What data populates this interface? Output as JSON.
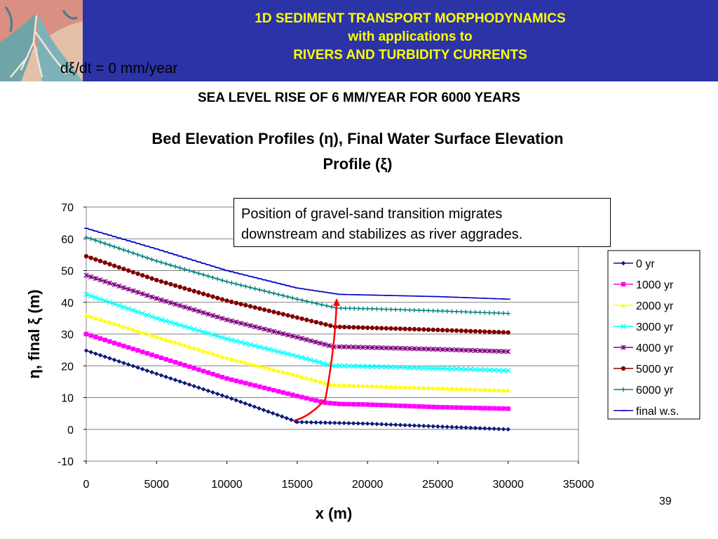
{
  "header": {
    "title_line1": "1D SEDIMENT TRANSPORT MORPHODYNAMICS",
    "title_line2": "with applications to",
    "title_line3": "RIVERS AND TURBIDITY CURRENTS",
    "rate_annotation": "dξ/dt = 0 mm/year",
    "banner_color": "#2b33a6",
    "title_color": "#ffff00"
  },
  "slide": {
    "subtitle": "SEA LEVEL RISE OF 6 MM/YEAR FOR 6000 YEARS",
    "page_number": "39"
  },
  "chart_data": {
    "type": "line",
    "title_line1": "Bed Elevation Profiles (η), Final Water Surface Elevation",
    "title_line2": "Profile (ξ)",
    "xlabel": "x (m)",
    "ylabel": "η, final ξ (m)",
    "xlim": [
      0,
      35000
    ],
    "ylim": [
      -10,
      70
    ],
    "x_ticks": [
      0,
      5000,
      10000,
      15000,
      20000,
      25000,
      30000,
      35000
    ],
    "y_ticks": [
      -10,
      0,
      10,
      20,
      30,
      40,
      50,
      60,
      70
    ],
    "grid": "horizontal",
    "legend_position": "right",
    "series": [
      {
        "name": "0 yr",
        "color": "#0a1a7a",
        "marker": "diamond",
        "points": [
          [
            0,
            24.8
          ],
          [
            5000,
            17.5
          ],
          [
            10000,
            10.2
          ],
          [
            14900,
            2.5
          ],
          [
            15000,
            2.3
          ],
          [
            18000,
            2.0
          ],
          [
            20000,
            1.8
          ],
          [
            25000,
            0.9
          ],
          [
            30000,
            0.0
          ]
        ]
      },
      {
        "name": "1000 yr",
        "color": "#ff00ff",
        "marker": "square",
        "points": [
          [
            0,
            30.0
          ],
          [
            5000,
            23.0
          ],
          [
            10000,
            16.0
          ],
          [
            15000,
            10.5
          ],
          [
            17000,
            8.4
          ],
          [
            18000,
            8.0
          ],
          [
            20000,
            7.8
          ],
          [
            25000,
            7.0
          ],
          [
            30000,
            6.5
          ]
        ]
      },
      {
        "name": "2000 yr",
        "color": "#ffff00",
        "marker": "triangle",
        "points": [
          [
            0,
            36.0
          ],
          [
            5000,
            29.2
          ],
          [
            10000,
            22.5
          ],
          [
            15000,
            17.0
          ],
          [
            17300,
            14.2
          ],
          [
            18000,
            14.0
          ],
          [
            20000,
            13.7
          ],
          [
            25000,
            13.0
          ],
          [
            30000,
            12.3
          ]
        ]
      },
      {
        "name": "3000 yr",
        "color": "#00ffff",
        "marker": "x",
        "points": [
          [
            0,
            42.5
          ],
          [
            5000,
            35.0
          ],
          [
            10000,
            28.5
          ],
          [
            15000,
            23.0
          ],
          [
            17500,
            20.0
          ],
          [
            18000,
            20.0
          ],
          [
            20000,
            19.8
          ],
          [
            25000,
            19.2
          ],
          [
            30000,
            18.5
          ]
        ]
      },
      {
        "name": "4000 yr",
        "color": "#800080",
        "marker": "asterisk",
        "points": [
          [
            0,
            48.5
          ],
          [
            5000,
            41.2
          ],
          [
            10000,
            34.5
          ],
          [
            15000,
            29.0
          ],
          [
            17600,
            26.0
          ],
          [
            18000,
            26.0
          ],
          [
            20000,
            25.8
          ],
          [
            25000,
            25.2
          ],
          [
            30000,
            24.5
          ]
        ]
      },
      {
        "name": "5000 yr",
        "color": "#800000",
        "marker": "circle",
        "points": [
          [
            0,
            54.5
          ],
          [
            5000,
            47.0
          ],
          [
            10000,
            40.5
          ],
          [
            15000,
            35.2
          ],
          [
            17700,
            32.3
          ],
          [
            20000,
            32.0
          ],
          [
            25000,
            31.3
          ],
          [
            30000,
            30.5
          ]
        ]
      },
      {
        "name": "6000 yr",
        "color": "#008080",
        "marker": "plus",
        "points": [
          [
            0,
            60.5
          ],
          [
            5000,
            53.0
          ],
          [
            10000,
            46.5
          ],
          [
            15000,
            41.0
          ],
          [
            17800,
            38.2
          ],
          [
            20000,
            38.0
          ],
          [
            25000,
            37.3
          ],
          [
            30000,
            36.5
          ]
        ]
      },
      {
        "name": "final w.s.",
        "color": "#0000cc",
        "marker": "dash",
        "points": [
          [
            0,
            63.3
          ],
          [
            5000,
            56.8
          ],
          [
            10000,
            50.0
          ],
          [
            15000,
            44.5
          ],
          [
            18000,
            42.5
          ],
          [
            20000,
            42.3
          ],
          [
            25000,
            41.8
          ],
          [
            30000,
            41.0
          ]
        ]
      }
    ],
    "annotation": {
      "text_line1": "Position of gravel-sand transition migrates",
      "text_line2": "downstream and stabilizes as river aggrades.",
      "arrow_color": "#ff0000",
      "arrow_path": [
        [
          14800,
          2.8
        ],
        [
          16000,
          4.0
        ],
        [
          17000,
          9.5
        ],
        [
          17700,
          25.0
        ],
        [
          17800,
          40.0
        ]
      ]
    }
  }
}
